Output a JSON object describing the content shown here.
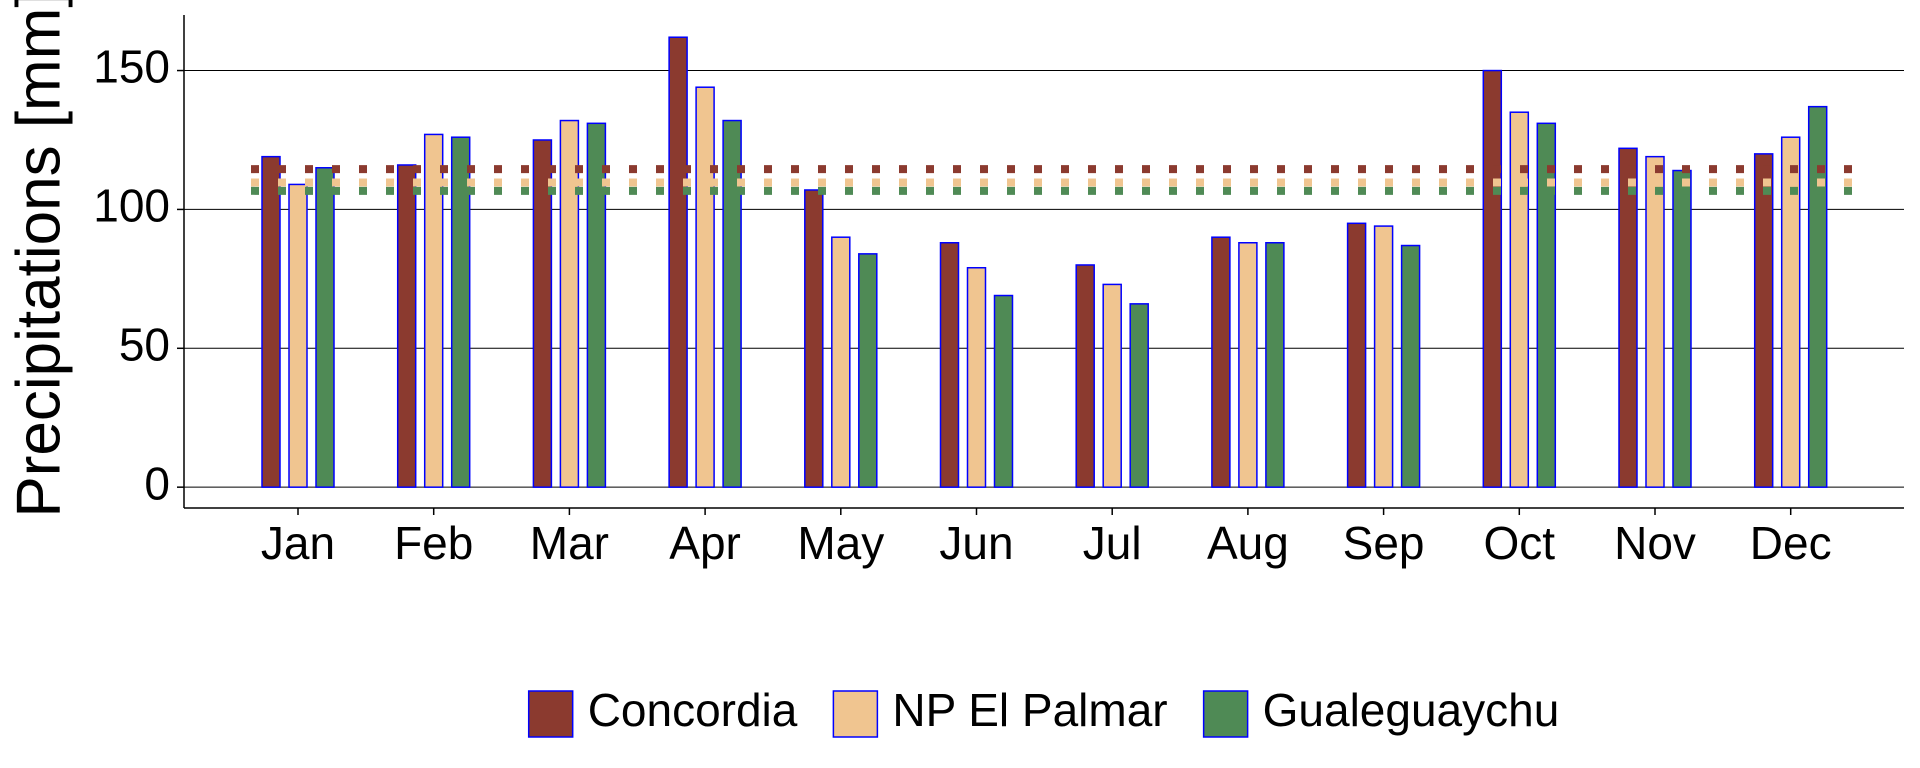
{
  "chart_data": {
    "type": "bar",
    "y_label": "Precipitations [mm]",
    "categories": [
      "Jan",
      "Feb",
      "Mar",
      "Apr",
      "May",
      "Jun",
      "Jul",
      "Aug",
      "Sep",
      "Oct",
      "Nov",
      "Dec"
    ],
    "series": [
      {
        "name": "Concordia",
        "color": "#8b3a2f",
        "values": [
          119,
          116,
          125,
          162,
          107,
          88,
          80,
          90,
          95,
          150,
          122,
          120
        ],
        "mean": 114.5
      },
      {
        "name": "NP El Palmar",
        "color": "#f0c590",
        "values": [
          109,
          127,
          132,
          144,
          90,
          79,
          73,
          88,
          94,
          135,
          119,
          126
        ],
        "mean": 109.7
      },
      {
        "name": "Gualeguaychu",
        "color": "#4f8a55",
        "values": [
          115,
          126,
          131,
          132,
          84,
          69,
          66,
          88,
          87,
          131,
          114,
          137
        ],
        "mean": 106.7
      }
    ],
    "bar_edge_color": "#0000ff",
    "ylim": [
      -7.5,
      170
    ],
    "yticks": [
      0,
      50,
      100,
      150
    ],
    "grid": true,
    "legend": "bottom"
  }
}
